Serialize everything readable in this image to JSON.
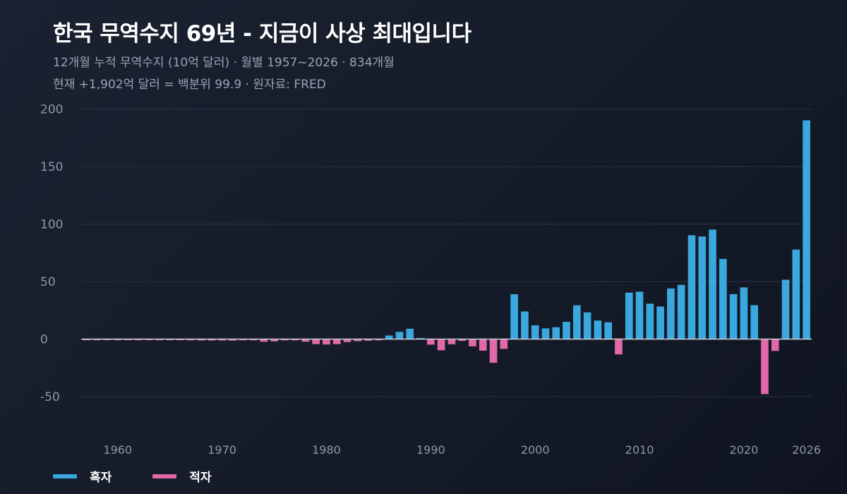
{
  "header": {
    "title": "한국 무역수지 69년 - 지금이 사상 최대입니다",
    "subtitle_line1": "12개월 누적 무역수지 (10억 달러)  ·  월별 1957~2026  ·  834개월",
    "subtitle_line2": "현재 +1,902억 달러 = 백분위 99.9  ·  원자료: FRED"
  },
  "legend": {
    "surplus_label": "흑자",
    "deficit_label": "적자"
  },
  "colors": {
    "surplus": "#3aa8df",
    "deficit": "#e06aa8",
    "grid": "#2a3244",
    "zero_line": "#c8cdd6",
    "tick_text": "#8e97a8"
  },
  "chart_data": {
    "type": "bar",
    "title": "한국 무역수지 69년 - 지금이 사상 최대입니다",
    "ylabel": "",
    "xlabel": "",
    "ylim": [
      -50,
      200
    ],
    "yticks": [
      200,
      150,
      100,
      50,
      0,
      -50
    ],
    "xticks": [
      1960,
      1970,
      1980,
      1990,
      2000,
      2010,
      2020,
      2026
    ],
    "grid": true,
    "legend_position": "bottom-left",
    "series": [
      {
        "name": "흑자"
      },
      {
        "name": "적자"
      }
    ],
    "x": [
      1957,
      1958,
      1959,
      1960,
      1961,
      1962,
      1963,
      1964,
      1965,
      1966,
      1967,
      1968,
      1969,
      1970,
      1971,
      1972,
      1973,
      1974,
      1975,
      1976,
      1977,
      1978,
      1979,
      1980,
      1981,
      1982,
      1983,
      1984,
      1985,
      1986,
      1987,
      1988,
      1989,
      1990,
      1991,
      1992,
      1993,
      1994,
      1995,
      1996,
      1997,
      1998,
      1999,
      2000,
      2001,
      2002,
      2003,
      2004,
      2005,
      2006,
      2007,
      2008,
      2009,
      2010,
      2011,
      2012,
      2013,
      2014,
      2015,
      2016,
      2017,
      2018,
      2019,
      2020,
      2021,
      2022,
      2023,
      2024,
      2025,
      2026
    ],
    "values": [
      -0.4,
      -0.4,
      -0.4,
      -0.4,
      -0.4,
      -0.4,
      -0.5,
      -0.5,
      -0.5,
      -0.7,
      -1.0,
      -1.2,
      -1.2,
      -1.2,
      -1.3,
      -1.0,
      -1.0,
      -2.3,
      -2.0,
      -1.1,
      -1.1,
      -2.3,
      -4.4,
      -4.7,
      -4.4,
      -2.6,
      -1.8,
      -1.4,
      -1.0,
      3.1,
      6.3,
      9.0,
      0.9,
      -4.8,
      -9.7,
      -4.5,
      -1.6,
      -6.3,
      -10.1,
      -20.6,
      -8.5,
      39.0,
      24.0,
      12.0,
      9.3,
      10.3,
      15.0,
      29.4,
      23.2,
      16.1,
      14.6,
      -13.3,
      40.4,
      41.2,
      30.8,
      28.3,
      44.0,
      47.2,
      90.3,
      89.2,
      95.2,
      69.7,
      39.1,
      44.9,
      29.5,
      -47.8,
      -10.3,
      51.6,
      77.8,
      190.2
    ]
  }
}
